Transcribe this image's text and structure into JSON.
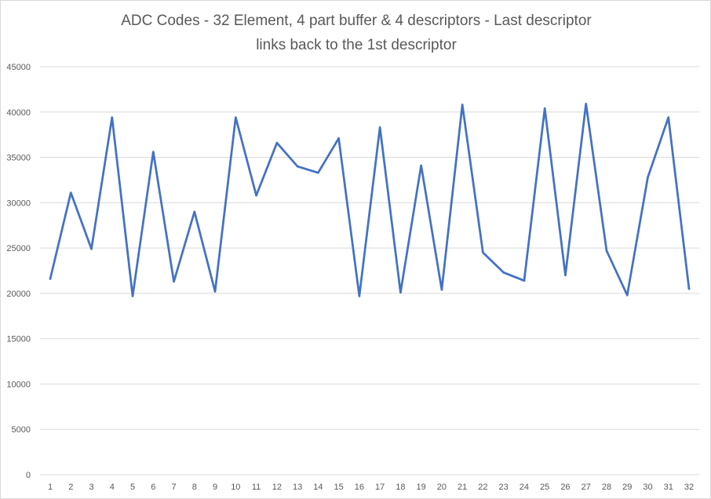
{
  "chart_data": {
    "type": "line",
    "title": "ADC Codes - 32 Element, 4 part buffer & 4 descriptors -   Last descriptor links back to the 1st descriptor",
    "title_lines": [
      "ADC Codes - 32 Element, 4 part buffer & 4 descriptors -   Last descriptor",
      "links back to the 1st descriptor"
    ],
    "xlabel": "",
    "ylabel": "",
    "categories": [
      "1",
      "2",
      "3",
      "4",
      "5",
      "6",
      "7",
      "8",
      "9",
      "10",
      "11",
      "12",
      "13",
      "14",
      "15",
      "16",
      "17",
      "18",
      "19",
      "20",
      "21",
      "22",
      "23",
      "24",
      "25",
      "26",
      "27",
      "28",
      "29",
      "30",
      "31",
      "32"
    ],
    "values": [
      21600,
      31100,
      24900,
      39400,
      19700,
      35600,
      21300,
      29000,
      20200,
      39400,
      30800,
      36600,
      34000,
      33300,
      37100,
      19700,
      38300,
      20100,
      34100,
      20400,
      40800,
      24500,
      22300,
      21400,
      40400,
      22000,
      40900,
      24700,
      19800,
      32800,
      39400,
      20500
    ],
    "ylim": [
      0,
      45000
    ],
    "yticks": [
      "0",
      "5000",
      "10000",
      "15000",
      "20000",
      "25000",
      "30000",
      "35000",
      "40000",
      "45000"
    ],
    "grid": true,
    "legend": "none",
    "line_color": "#4472c4"
  }
}
